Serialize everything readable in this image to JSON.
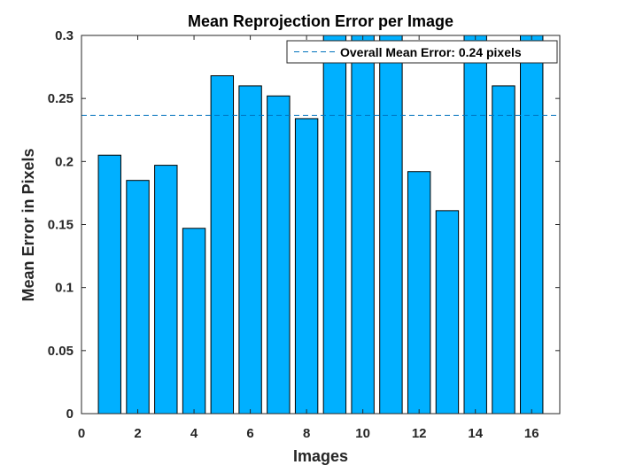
{
  "chart_data": {
    "type": "bar",
    "title": "Mean Reprojection Error per Image",
    "xlabel": "Images",
    "ylabel": "Mean Error in Pixels",
    "x": [
      1,
      2,
      3,
      4,
      5,
      6,
      7,
      8,
      9,
      10,
      11,
      12,
      13,
      14,
      15,
      16
    ],
    "values": [
      0.205,
      0.185,
      0.197,
      0.147,
      0.268,
      0.26,
      0.252,
      0.234,
      0.3,
      0.3,
      0.3,
      0.192,
      0.161,
      0.3,
      0.26,
      0.3
    ],
    "xlim": [
      0,
      17
    ],
    "ylim": [
      0,
      0.3
    ],
    "xticks": [
      0,
      2,
      4,
      6,
      8,
      10,
      12,
      14,
      16
    ],
    "yticks": [
      0,
      0.05,
      0.1,
      0.15,
      0.2,
      0.25,
      0.3
    ],
    "xtick_labels": [
      "0",
      "2",
      "4",
      "6",
      "8",
      "10",
      "12",
      "14",
      "16"
    ],
    "ytick_labels": [
      "0",
      "0.05",
      "0.1",
      "0.15",
      "0.2",
      "0.25",
      "0.3"
    ],
    "bar_color": "#00b0ff",
    "reference_line": {
      "value": 0.2365,
      "style": "dashed",
      "color": "#0072bd",
      "label": "Overall Mean Error: 0.24 pixels"
    },
    "legend": {
      "position": "top-right"
    },
    "grid": false
  }
}
